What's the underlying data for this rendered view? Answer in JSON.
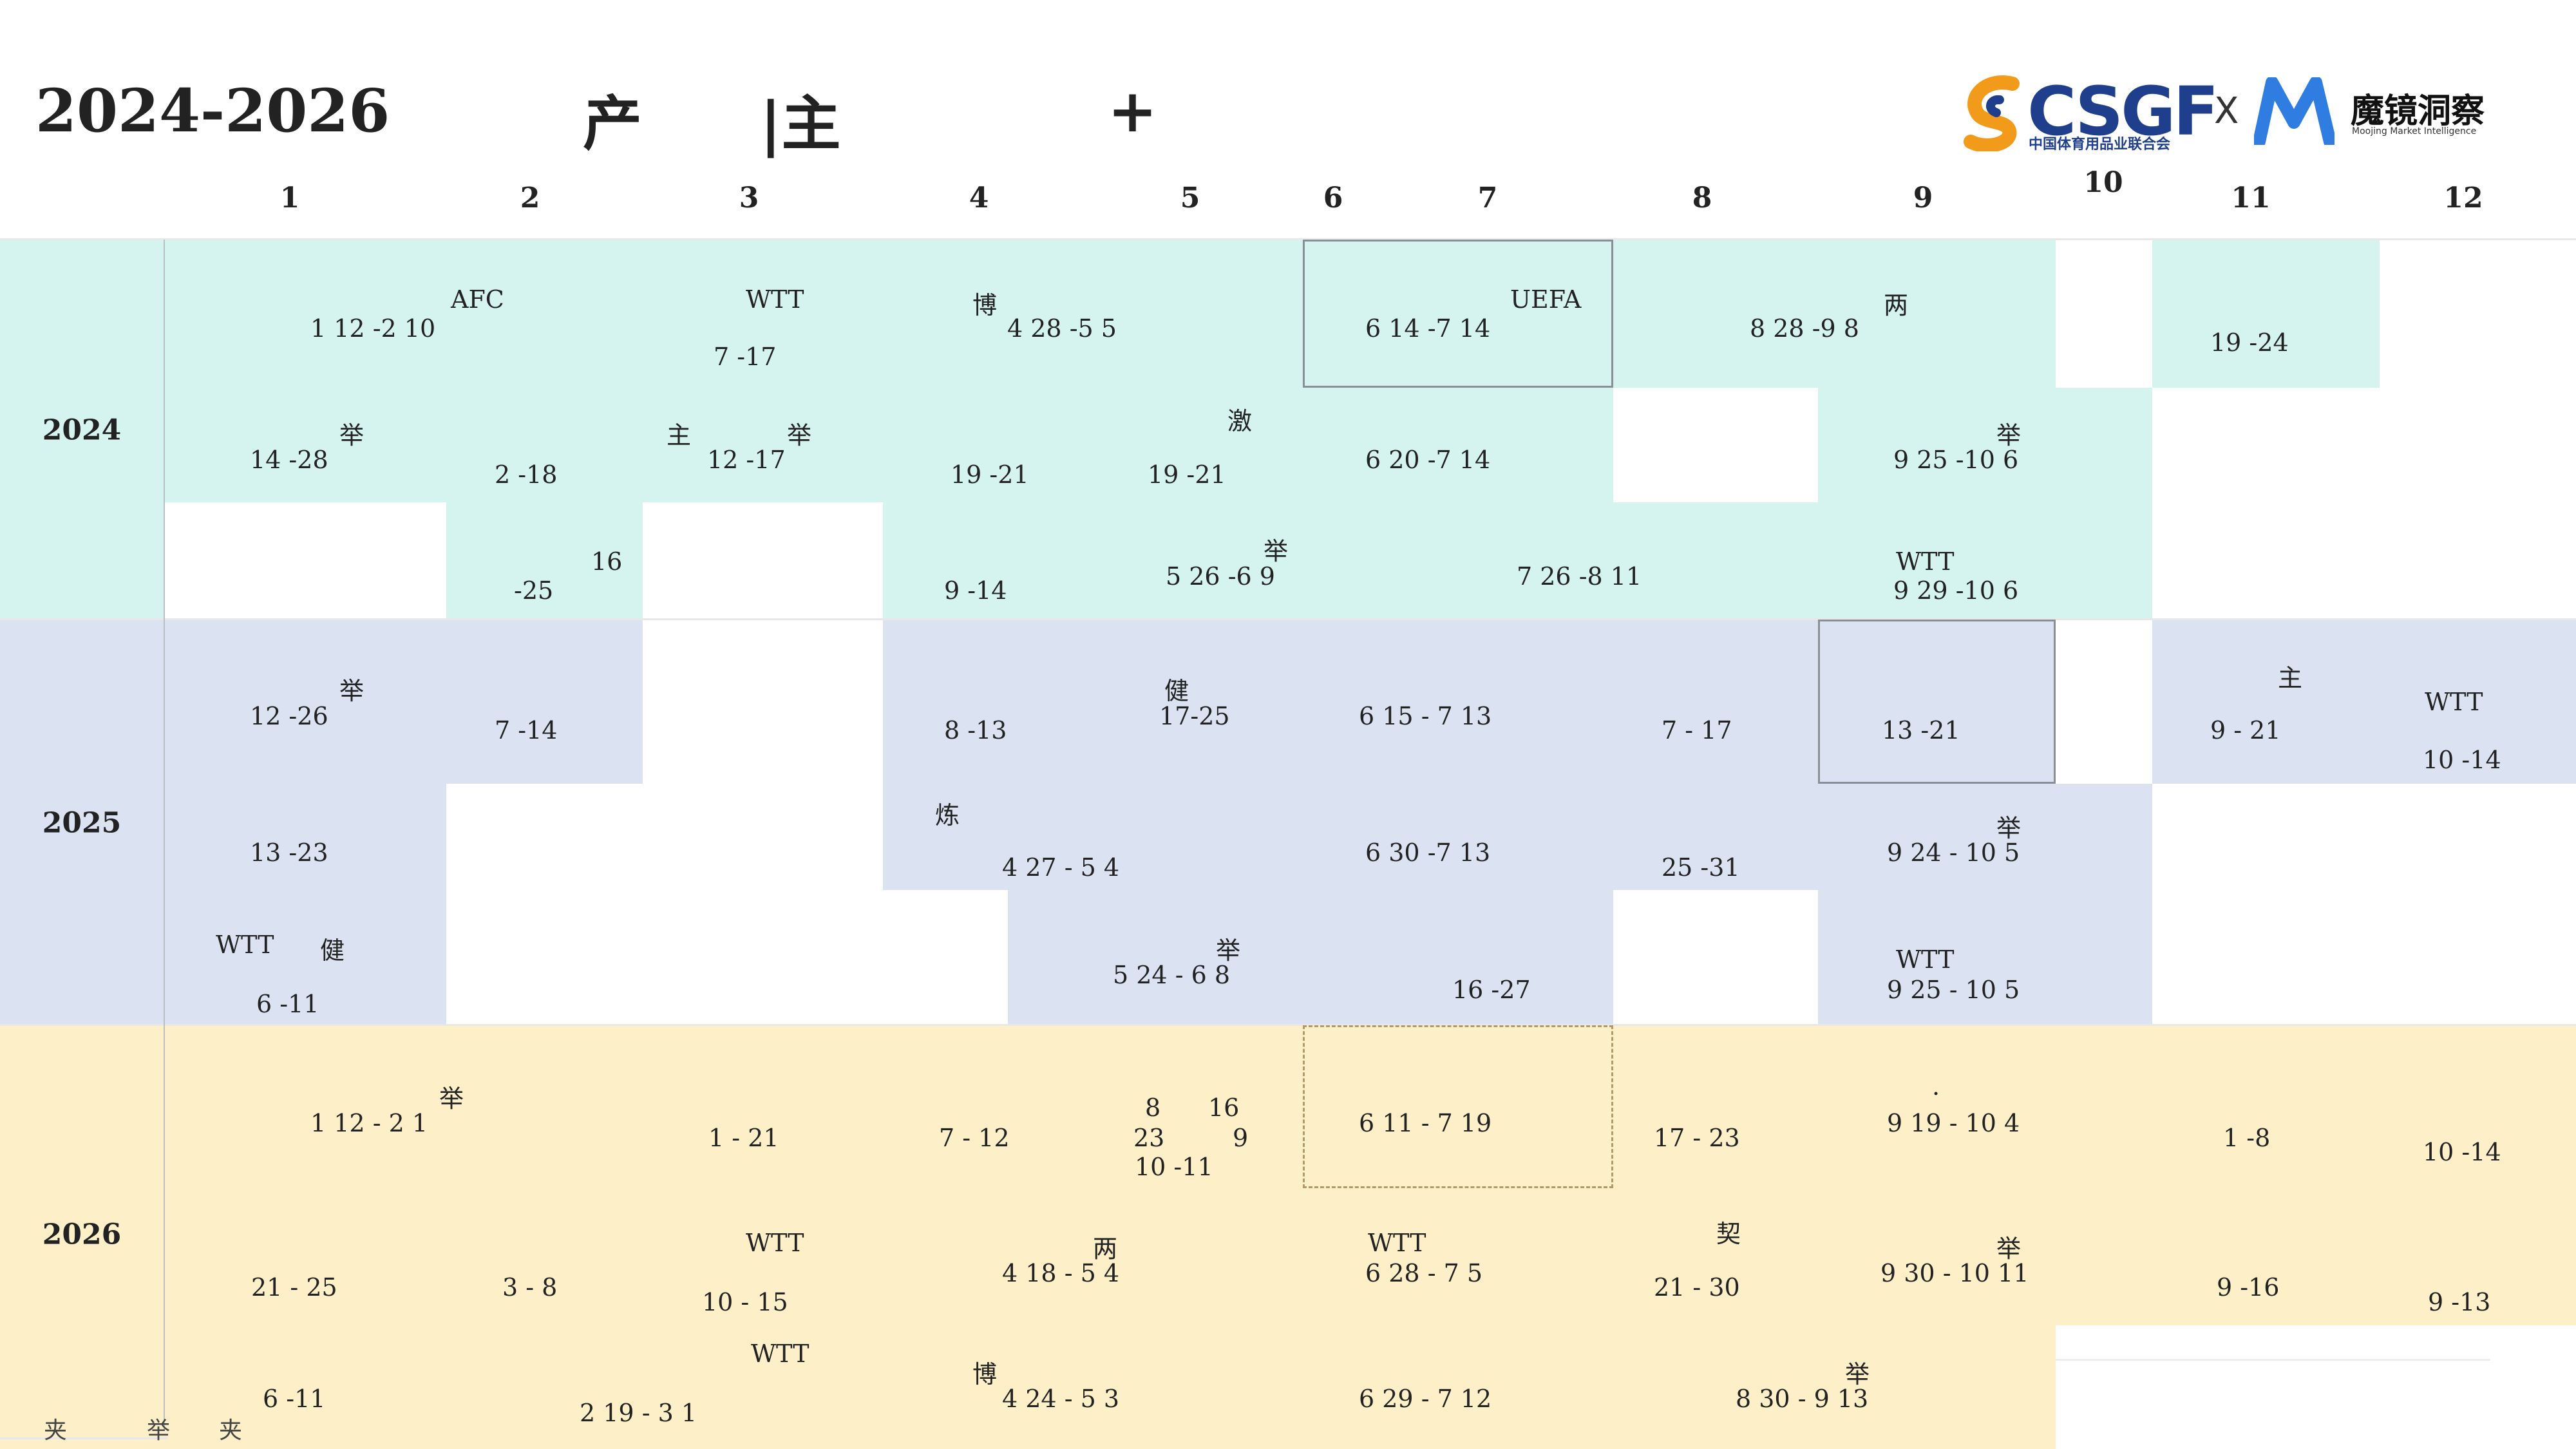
{
  "header": {
    "title": "2024-2026",
    "title_ch1": "产",
    "title_sep": "|主",
    "title_plus": "+",
    "logo_csgf": "CSGF",
    "logo_csgf_sub": "中国体育用品业联合会",
    "logo_x": "X",
    "logo_mj": "魔镜洞察",
    "logo_mj_sub": "Moojing Market Intelligence"
  },
  "months": [
    "1",
    "2",
    "3",
    "4",
    "5",
    "6",
    "7",
    "8",
    "9",
    "10",
    "11",
    "12"
  ],
  "years": [
    "2024",
    "2025",
    "2026"
  ],
  "colors": {
    "y2024": "#d5f3ef",
    "y2025": "#dbe3f3",
    "y2026": "#fdf0c9"
  },
  "cells": {
    "a1": "AFC",
    "a2": "1   12   -2   10",
    "a3": "WTT",
    "a4": "7   -17",
    "a5": "博",
    "a6": "4   28   -5   5",
    "a7": "UEFA",
    "a8": "6   14   -7   14",
    "a9": "两",
    "a10": "8   28   -9   8",
    "a11": "19   -24",
    "a12": "举",
    "a13": "14   -28",
    "a14": "2   -18",
    "a15": "主",
    "a16": "举",
    "a17": "12   -17",
    "a18": "19   -21",
    "a19": "激",
    "a20": "19   -21",
    "a21": "6   20   -7   14",
    "a22": "举",
    "a23": "9   25   -10   6",
    "a24": "16",
    "a25": "-25",
    "a26": "9   -14",
    "a27": "举",
    "a28": "5   26   -6   9",
    "a29": "7   26   -8   11",
    "a30": "WTT",
    "a31": "9   29   -10   6",
    "b1": "举",
    "b2": "12   -26",
    "b3": "7   -14",
    "b4": "8   -13",
    "b5": "健",
    "b6": "17-25",
    "b7": "6   15    - 7   13",
    "b8": "7   - 17",
    "b9": "13   -21",
    "b10": "主",
    "b11": "9   - 21",
    "b12": "WTT",
    "b13": "10   -14",
    "b14": "13   -23",
    "b15": "炼",
    "b16": "4   27   - 5   4",
    "b17": "6   30   -7   13",
    "b18": "25   -31",
    "b19": "举",
    "b20": "9   24   - 10   5",
    "b21": "WTT",
    "b22": "健",
    "b23": "6   -11",
    "b24": "举",
    "b25": "5   24   - 6   8",
    "b26": "16   -27",
    "b27": "WTT",
    "b28": "9   25   - 10   5",
    "c1": "举",
    "c2": "1   12   - 2   1",
    "c3": "1   - 21",
    "c4": "7   - 12",
    "c5": "8",
    "c6": "16",
    "c7": "23",
    "c8": "9",
    "c9": "10   -11",
    "c10": "6   11    - 7   19",
    "c11": "17   - 23",
    "c12": ".",
    "c13": "9   19   - 10   4",
    "c14": "1   -8",
    "c15": "10   -14",
    "c16": "21   - 25",
    "c17": "3   - 8",
    "c18": "WTT",
    "c19": "10   - 15",
    "c20": "两",
    "c21": "4   18   - 5   4",
    "c22": "WTT",
    "c23": "6   28    - 7   5",
    "c24": "契",
    "c25": "21   - 30",
    "c26": "举",
    "c27": "9   30   - 10   11",
    "c28": "9   -16",
    "c29": "9   -13",
    "c30": "6   -11",
    "c31": "WTT",
    "c32": "2   19   - 3   1",
    "c33": "博",
    "c34": "4   24   - 5   3",
    "c35": "6   29   - 7   12",
    "c36": "举",
    "c37": "8   30   - 9   13"
  },
  "footer": {
    "f1": "夹",
    "f2": "举",
    "f3": "夹"
  }
}
